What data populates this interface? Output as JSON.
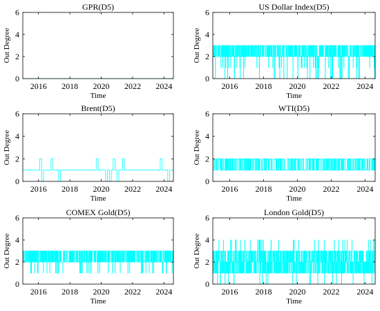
{
  "chart_data": [
    {
      "type": "line",
      "title": "GPR(D5)",
      "xlabel": "Time",
      "ylabel": "Out Degree",
      "xlim": [
        2015.0,
        2024.6
      ],
      "ylim": [
        0,
        6
      ],
      "xticks": [
        "2016",
        "2018",
        "2020",
        "2022",
        "2024"
      ],
      "yticks": [
        "0",
        "2",
        "4",
        "6"
      ],
      "color": "#00ffff",
      "series": [
        {
          "pattern": "constant",
          "level": 0,
          "x": [
            2015.0,
            2024.6
          ],
          "y": [
            0,
            0
          ]
        }
      ]
    },
    {
      "type": "line",
      "title": "US Dollar Index(D5)",
      "xlabel": "Time",
      "ylabel": "Out Degree",
      "xlim": [
        2015.0,
        2024.6
      ],
      "ylim": [
        0,
        6
      ],
      "xticks": [
        "2016",
        "2018",
        "2020",
        "2022",
        "2024"
      ],
      "yticks": [
        "0",
        "2",
        "4",
        "6"
      ],
      "color": "#00ffff",
      "series": [
        {
          "pattern": "oscillating",
          "values": [
            0,
            1,
            2,
            3
          ],
          "dominant_range": [
            2,
            3
          ],
          "approx_switches": 900
        }
      ]
    },
    {
      "type": "line",
      "title": "Brent(D5)",
      "xlabel": "Time",
      "ylabel": "Out Degree",
      "xlim": [
        2015.0,
        2024.6
      ],
      "ylim": [
        0,
        6
      ],
      "xticks": [
        "2016",
        "2018",
        "2020",
        "2022",
        "2024"
      ],
      "yticks": [
        "0",
        "2",
        "4",
        "6"
      ],
      "color": "#00ffff",
      "series": [
        {
          "pattern": "mostly-constant",
          "base": 1,
          "values": [
            0,
            1,
            2
          ],
          "approx_switches": 80
        }
      ]
    },
    {
      "type": "line",
      "title": "WTI(D5)",
      "xlabel": "Time",
      "ylabel": "Out Degree",
      "xlim": [
        2015.0,
        2024.6
      ],
      "ylim": [
        0,
        6
      ],
      "xticks": [
        "2016",
        "2018",
        "2020",
        "2022",
        "2024"
      ],
      "yticks": [
        "0",
        "2",
        "4",
        "6"
      ],
      "color": "#00ffff",
      "series": [
        {
          "pattern": "oscillating",
          "values": [
            1,
            2
          ],
          "dominant_range": [
            1,
            2
          ],
          "approx_switches": 500
        }
      ]
    },
    {
      "type": "line",
      "title": "COMEX Gold(D5)",
      "xlabel": "Time",
      "ylabel": "Out Degree",
      "xlim": [
        2015.0,
        2024.6
      ],
      "ylim": [
        0,
        6
      ],
      "xticks": [
        "2016",
        "2018",
        "2020",
        "2022",
        "2024"
      ],
      "yticks": [
        "0",
        "2",
        "4",
        "6"
      ],
      "color": "#00ffff",
      "series": [
        {
          "pattern": "oscillating",
          "values": [
            1,
            2,
            3
          ],
          "dominant_range": [
            2,
            3
          ],
          "approx_switches": 900
        }
      ]
    },
    {
      "type": "line",
      "title": "London Gold(D5)",
      "xlabel": "Time",
      "ylabel": "Out Degree",
      "xlim": [
        2015.0,
        2024.6
      ],
      "ylim": [
        0,
        6
      ],
      "xticks": [
        "2016",
        "2018",
        "2020",
        "2022",
        "2024"
      ],
      "yticks": [
        "0",
        "2",
        "4",
        "6"
      ],
      "color": "#00ffff",
      "series": [
        {
          "pattern": "oscillating",
          "values": [
            0,
            1,
            2,
            3,
            4
          ],
          "dominant_range": [
            1,
            3
          ],
          "approx_switches": 1000
        }
      ]
    }
  ]
}
